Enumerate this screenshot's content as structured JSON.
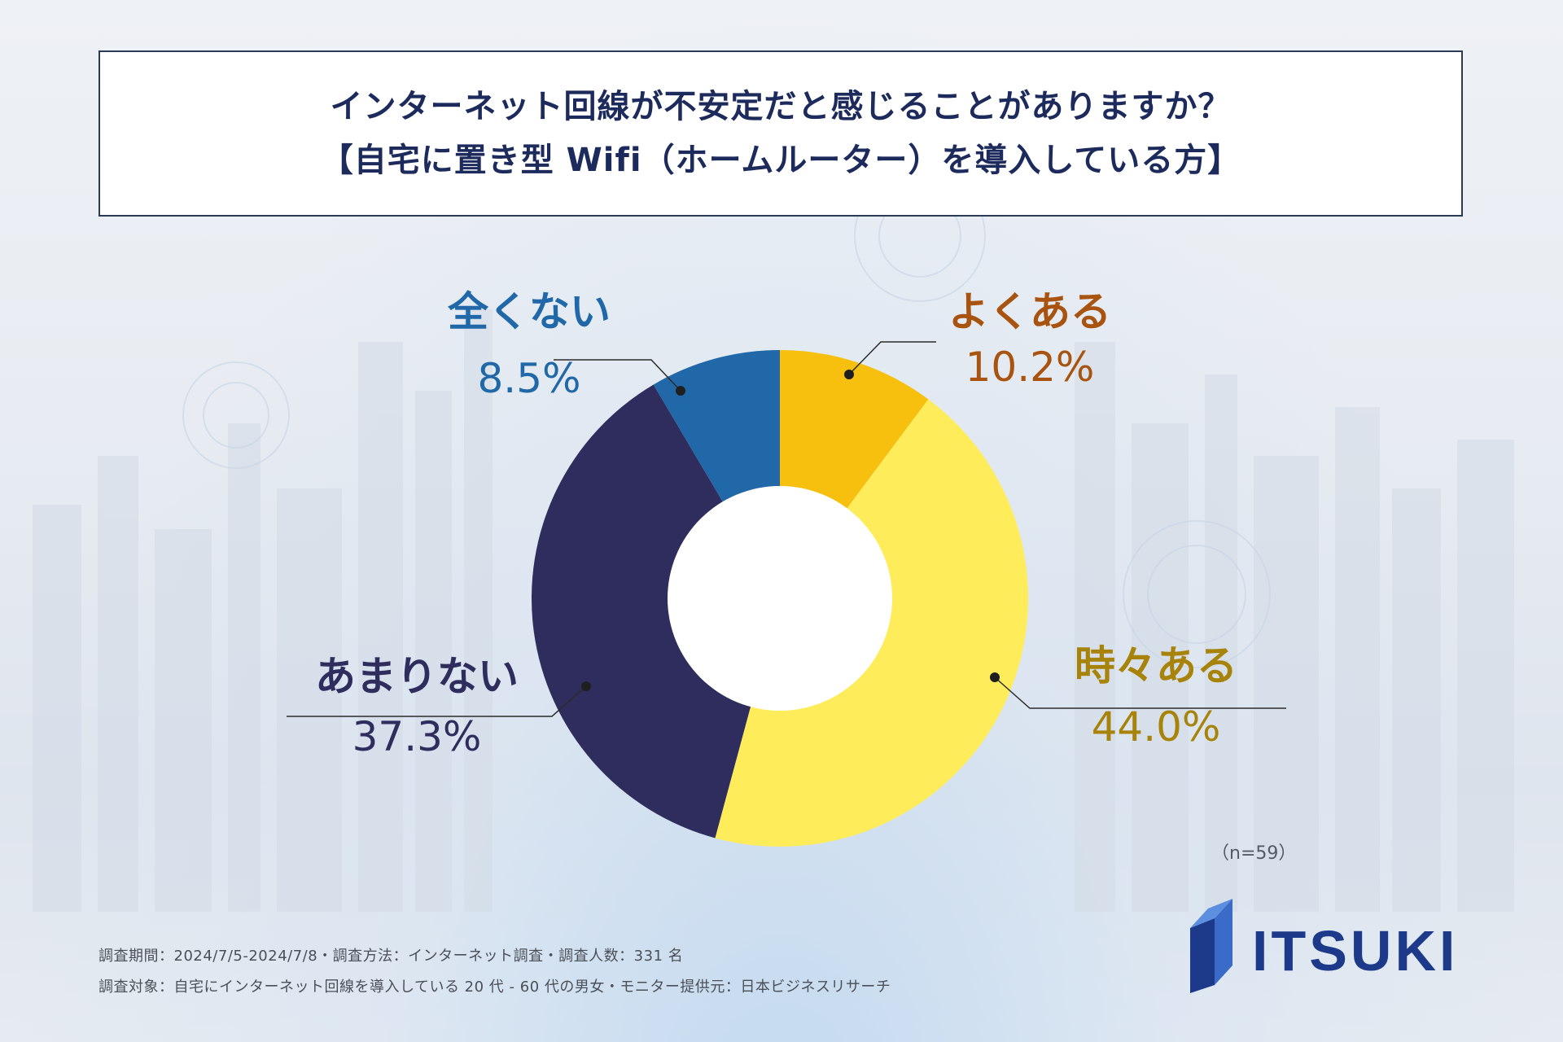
{
  "header": {
    "title_line1": "インターネット回線が不安定だと感じることがありますか？",
    "title_line2": "【自宅に置き型 Wifi（ホームルーター）を導入している方】"
  },
  "chart_data": {
    "type": "pie",
    "variant": "donut",
    "title": "インターネット回線が不安定だと感じることがありますか？【自宅に置き型 Wifi（ホームルーター）を導入している方】",
    "categories": [
      "よくある",
      "時々ある",
      "あまりない",
      "全くない"
    ],
    "values": [
      10.2,
      44.0,
      37.3,
      8.5
    ],
    "value_labels": [
      "10.2%",
      "44.0%",
      "37.3%",
      "8.5%"
    ],
    "colors": [
      "#f7c00f",
      "#feec5a",
      "#2e2d5e",
      "#2068a8"
    ],
    "label_colors": [
      "#a8530f",
      "#a8830a",
      "#2e2d5e",
      "#2068a8"
    ],
    "sample_size": "（n=59）"
  },
  "footer": {
    "note_1": "調査期間：2024/7/5-2024/7/8・調査方法：インターネット調査・調査人数：331 名",
    "note_2": "調査対象：自宅にインターネット回線を導入している 20 代 - 60 代の男女・モニター提供元：日本ビジネスリサーチ"
  },
  "logo": {
    "text": "ITSUKI",
    "color": "#1d3a8a"
  }
}
